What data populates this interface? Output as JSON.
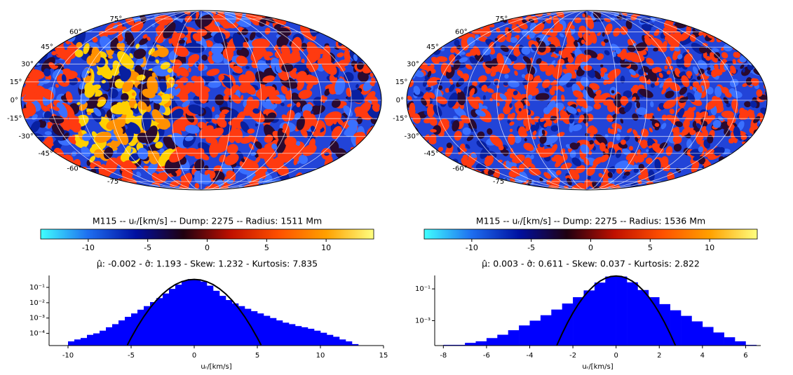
{
  "chart_data": [
    {
      "type": "histogram",
      "title": "M115 -- uᵣ/[km/s] -- Dump: 2275 -- Radius: 1511 Mm",
      "subtitle": "μ̂: -0.002 - σ̂: 1.193 - Skew: 1.232 - Kurtosis: 7.835",
      "map": {
        "lat_labels": [
          "75°",
          "60°",
          "45°",
          "30°",
          "15°",
          "0°",
          "-15°",
          "-30°",
          "-45°",
          "-60°",
          "-75°"
        ]
      },
      "colorbar": {
        "lim": [
          -14,
          14
        ],
        "ticks": [
          -10,
          -5,
          0,
          5,
          10
        ],
        "colors": [
          "#40ffff",
          "#1e6ef0",
          "#0010a0",
          "#200010",
          "#c01000",
          "#ff5000",
          "#ffa000",
          "#ffff80"
        ]
      },
      "xlabel": "uᵣ/[km/s]",
      "color": "#0000ff",
      "bins": [
        -10,
        -9.5,
        -9,
        -8.5,
        -8,
        -7.5,
        -7,
        -6.5,
        -6,
        -5.5,
        -5,
        -4.5,
        -4,
        -3.5,
        -3,
        -2.5,
        -2,
        -1.5,
        -1,
        -0.5,
        0,
        0.5,
        1,
        1.5,
        2,
        2.5,
        3,
        3.5,
        4,
        4.5,
        5,
        5.5,
        6,
        6.5,
        7,
        7.5,
        8,
        8.5,
        9,
        9.5,
        10,
        10.5,
        11,
        11.5,
        12,
        12.5,
        13,
        13.5,
        14,
        14.5
      ],
      "values": [
        3e-05,
        4e-05,
        5e-05,
        8e-05,
        0.0001,
        0.00015,
        0.00025,
        0.0004,
        0.0007,
        0.0012,
        0.002,
        0.0035,
        0.006,
        0.011,
        0.02,
        0.04,
        0.08,
        0.15,
        0.27,
        0.35,
        0.33,
        0.24,
        0.13,
        0.06,
        0.028,
        0.015,
        0.009,
        0.006,
        0.004,
        0.0028,
        0.002,
        0.0014,
        0.001,
        0.0007,
        0.0005,
        0.0004,
        0.0003,
        0.00025,
        0.0002,
        0.00015,
        0.00011,
        8e-05,
        6e-05,
        4e-05,
        3e-05,
        2e-05,
        1.5e-05,
        1e-05,
        1e-05
      ],
      "fit": {
        "color": "#000000",
        "x": [
          -5.3,
          -5,
          -4.5,
          -4,
          -3.5,
          -3,
          -2.5,
          -2,
          -1.5,
          -1,
          -0.5,
          0,
          0.5,
          1,
          1.5,
          2,
          2.5,
          3,
          3.5,
          4,
          4.5,
          5,
          5.3
        ],
        "values": [
          1.73e-05,
          5.12e-05,
          0.000272,
          0.001211,
          0.004525,
          0.01416,
          0.0372,
          0.082,
          0.1518,
          0.2354,
          0.3063,
          0.3344,
          0.3063,
          0.2354,
          0.1518,
          0.082,
          0.0372,
          0.01416,
          0.004525,
          0.001211,
          0.000272,
          5.12e-05,
          1.73e-05
        ]
      },
      "xlim": [
        -11.5,
        15
      ],
      "xticks": [
        -10,
        -5,
        0,
        5,
        10,
        15
      ],
      "log_y": true,
      "ylim": [
        1.6e-05,
        0.6
      ],
      "yticks": [
        {
          "value": 0.0001,
          "label": "10⁻⁴"
        },
        {
          "value": 0.001,
          "label": "10⁻³"
        },
        {
          "value": 0.01,
          "label": "10⁻²"
        },
        {
          "value": 0.1,
          "label": "10⁻¹"
        }
      ]
    },
    {
      "type": "histogram",
      "title": "M115 -- uᵣ/[km/s] -- Dump: 2275 -- Radius: 1536 Mm",
      "subtitle": "μ̂: 0.003 - σ̂: 0.611 - Skew: 0.037 - Kurtosis: 2.822",
      "map": {
        "lat_labels": [
          "75°",
          "60°",
          "45°",
          "30°",
          "15°",
          "0°",
          "-15°",
          "-30°",
          "-45°",
          "-60°",
          "-75°"
        ]
      },
      "colorbar": {
        "lim": [
          -14,
          14
        ],
        "ticks": [
          -10,
          -5,
          0,
          5,
          10
        ],
        "colors": [
          "#40ffff",
          "#1e6ef0",
          "#0010a0",
          "#200010",
          "#c01000",
          "#ff5000",
          "#ffa000",
          "#ffff80"
        ]
      },
      "xlabel": "uᵣ/[km/s]",
      "color": "#0000ff",
      "bins": [
        -8,
        -7.5,
        -7,
        -6.5,
        -6,
        -5.5,
        -5,
        -4.5,
        -4,
        -3.5,
        -3,
        -2.5,
        -2,
        -1.5,
        -1,
        -0.5,
        0,
        0.5,
        1,
        1.5,
        2,
        2.5,
        3,
        3.5,
        4,
        4.5,
        5,
        5.5,
        6,
        6.5
      ],
      "values": [
        3e-05,
        3e-05,
        4e-05,
        5e-05,
        8e-05,
        0.00013,
        0.00025,
        0.0005,
        0.001,
        0.0022,
        0.005,
        0.012,
        0.03,
        0.08,
        0.25,
        0.6,
        0.6,
        0.26,
        0.085,
        0.03,
        0.011,
        0.0045,
        0.002,
        0.0009,
        0.0004,
        0.00018,
        9e-05,
        5e-05,
        3e-05
      ],
      "fit": {
        "color": "#000000",
        "x": [
          -2.75,
          -2.5,
          -2.25,
          -2,
          -1.75,
          -1.5,
          -1.25,
          -1,
          -0.75,
          -0.5,
          -0.25,
          0,
          0.25,
          0.5,
          0.75,
          1,
          1.25,
          1.5,
          1.75,
          2,
          2.25,
          2.5,
          2.75
        ],
        "values": [
          2.6e-05,
          0.000151,
          0.000742,
          0.003075,
          0.01081,
          0.03207,
          0.0805,
          0.1711,
          0.3074,
          0.4672,
          0.6006,
          0.653,
          0.6006,
          0.4672,
          0.3074,
          0.1711,
          0.0805,
          0.03207,
          0.01081,
          0.003075,
          0.000742,
          0.000151,
          2.6e-05
        ]
      },
      "xlim": [
        -8.4,
        6.7
      ],
      "xticks": [
        -8,
        -6,
        -4,
        -2,
        0,
        2,
        4,
        6
      ],
      "log_y": true,
      "ylim": [
        2.7e-05,
        0.7
      ],
      "yticks": [
        {
          "value": 0.001,
          "label": "10⁻³"
        },
        {
          "value": 0.1,
          "label": "10⁻¹"
        }
      ]
    }
  ]
}
